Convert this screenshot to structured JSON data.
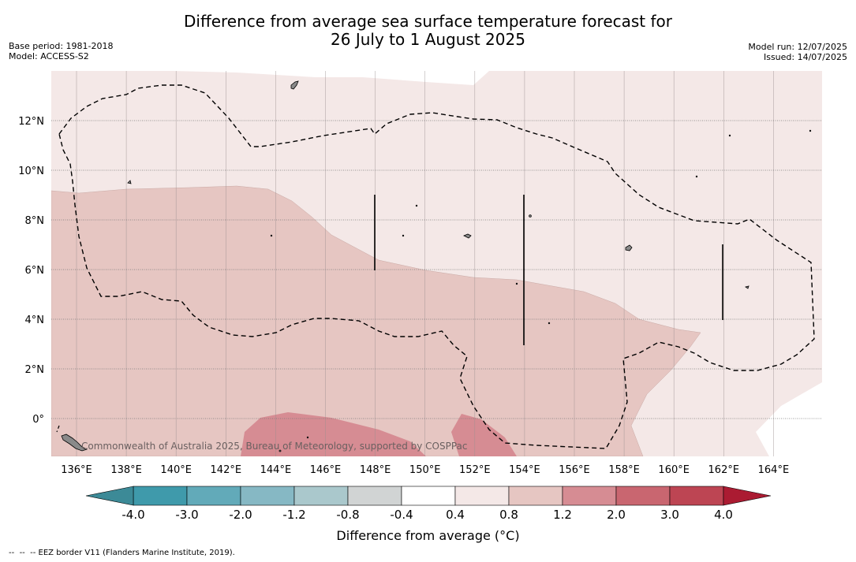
{
  "title": {
    "line1": "Difference from average sea surface temperature forecast for",
    "line2": "26 July to 1 August 2025"
  },
  "meta_left": {
    "base_period": "Base period: 1981-2018",
    "model": "Model: ACCESS-S2"
  },
  "meta_right": {
    "model_run": "Model run: 12/07/2025",
    "issued": "Issued: 14/07/2025"
  },
  "map": {
    "lon_ticks": [
      "136°E",
      "138°E",
      "140°E",
      "142°E",
      "144°E",
      "146°E",
      "148°E",
      "150°E",
      "152°E",
      "154°E",
      "156°E",
      "158°E",
      "160°E",
      "162°E",
      "164°E"
    ],
    "lat_ticks": [
      "12°N",
      "10°N",
      "8°N",
      "6°N",
      "4°N",
      "2°N",
      "0°"
    ],
    "lon_values": [
      136,
      138,
      140,
      142,
      144,
      146,
      148,
      150,
      152,
      154,
      156,
      158,
      160,
      162,
      164
    ],
    "lat_values": [
      12,
      10,
      8,
      6,
      4,
      2,
      0
    ],
    "extent": {
      "lon_min": 135,
      "lon_max": 166,
      "lat_min": -1.5,
      "lat_max": 14
    },
    "watermark": "Commonwealth of Australia 2025, Bureau of Meteorology, supported by COSPPac",
    "field_colors": {
      "0.4-0.8": "#f4e8e7",
      "0.8-1.2": "#e6c6c2",
      "1.2-2.0": "#d68c93"
    }
  },
  "colorbar": {
    "title": "Difference from average (°C)",
    "tick_labels": [
      "-4.0",
      "-3.0",
      "-2.0",
      "-1.2",
      "-0.8",
      "-0.4",
      "0.4",
      "0.8",
      "1.2",
      "2.0",
      "3.0",
      "4.0"
    ],
    "colors": [
      "#3f9aab",
      "#62aab9",
      "#86b8c4",
      "#aac8cc",
      "#d1d4d4",
      "#ffffff",
      "#f4e8e7",
      "#e6c6c2",
      "#d68c93",
      "#c96670",
      "#bd4553"
    ],
    "extend_low_color": "#3c8a97",
    "extend_high_color": "#ab1b32"
  },
  "footer": "--  --  -- EEZ border V11 (Flanders Marine Institute, 2019)."
}
